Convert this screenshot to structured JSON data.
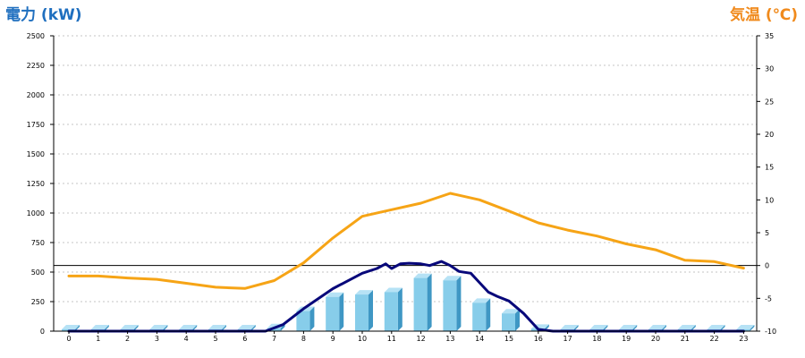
{
  "chart_data": {
    "type": "bar+line",
    "left_axis": {
      "label": "電力 (kW)",
      "ylim": [
        0,
        2500
      ],
      "ticks": [
        0,
        250,
        500,
        750,
        1000,
        1250,
        1500,
        1750,
        2000,
        2250,
        2500
      ]
    },
    "right_axis": {
      "label": "気温 (℃)",
      "ylim": [
        -10,
        35
      ],
      "ticks": [
        -10,
        -5,
        0,
        5,
        10,
        15,
        20,
        25,
        30,
        35
      ]
    },
    "categories": [
      "0",
      "1",
      "2",
      "3",
      "4",
      "5",
      "6",
      "7",
      "8",
      "9",
      "10",
      "11",
      "12",
      "13",
      "14",
      "15",
      "16",
      "17",
      "18",
      "19",
      "20",
      "21",
      "22",
      "23"
    ],
    "bars": [
      0,
      0,
      0,
      0,
      0,
      0,
      0,
      25,
      170,
      290,
      310,
      330,
      450,
      430,
      240,
      150,
      20,
      0,
      0,
      0,
      0,
      0,
      0,
      0
    ],
    "power_line": {
      "x": [
        0,
        1,
        2,
        3,
        4,
        5,
        6,
        6.7,
        7.3,
        8,
        9,
        10,
        10.5,
        10.8,
        11,
        11.3,
        11.6,
        12,
        12.3,
        12.7,
        13,
        13.3,
        13.7,
        14,
        14.3,
        14.6,
        15,
        15.5,
        16,
        16.5,
        17,
        18,
        19,
        20,
        21,
        22,
        23
      ],
      "y": [
        0,
        0,
        0,
        0,
        0,
        0,
        0,
        0,
        55,
        190,
        360,
        490,
        530,
        570,
        530,
        570,
        575,
        570,
        555,
        590,
        555,
        505,
        490,
        410,
        330,
        295,
        255,
        150,
        15,
        0,
        0,
        0,
        0,
        0,
        0,
        0,
        0
      ]
    },
    "temperature_line": {
      "values": [
        -1.6,
        -1.6,
        -1.9,
        -2.1,
        -2.7,
        -3.3,
        -3.5,
        -2.3,
        0.4,
        4.2,
        7.5,
        8.5,
        9.5,
        11,
        10,
        8.3,
        6.5,
        5.4,
        4.5,
        3.3,
        2.4,
        0.8,
        0.6,
        -0.4
      ]
    },
    "reference_line_right": 0,
    "grid": true,
    "colors": {
      "bar": "#87cdea",
      "bar_side": "#3f97c4",
      "bar_top": "#b6e2f5",
      "power_line": "#08087a",
      "temperature_line": "#f6a416",
      "reference_line": "#000000",
      "grid": "#c6c6c6"
    }
  }
}
